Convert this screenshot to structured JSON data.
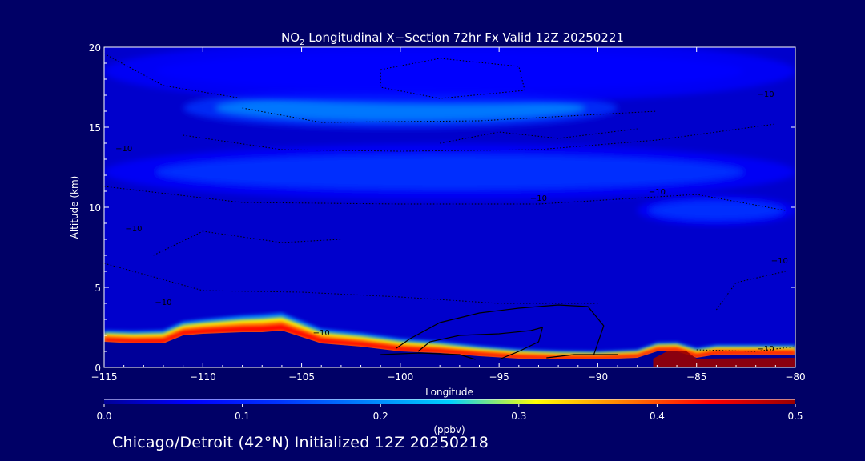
{
  "colors": {
    "background": "#000066",
    "text": "#ffffff",
    "contour_solid": "#000000",
    "contour_dotted": "#000000",
    "colormap": [
      "#000099",
      "#0000ff",
      "#0033ff",
      "#0080ff",
      "#00d0ff",
      "#ffff00",
      "#ff8000",
      "#ff0000",
      "#990000"
    ]
  },
  "chart_data": {
    "type": "heatmap",
    "title_prefix": "NO",
    "title_subscript": "2",
    "title_rest": " Longitudinal X−Section 72hr  Fx Valid 12Z 20250221",
    "xlabel": "Longitude",
    "ylabel": "Altitude (km)",
    "xlim": [
      -115,
      -80
    ],
    "ylim": [
      0,
      20
    ],
    "x_ticks": [
      -115,
      -110,
      -105,
      -100,
      -95,
      -90,
      -85,
      -80
    ],
    "x_tick_labels": [
      "−115",
      "−110",
      "−105",
      "−100",
      "−95",
      "−90",
      "−85",
      "−80"
    ],
    "y_ticks": [
      0,
      5,
      10,
      15,
      20
    ],
    "y_tick_labels": [
      "0",
      "5",
      "10",
      "15",
      "20"
    ],
    "colorbar": {
      "label": "(ppbv)",
      "range": [
        0.0,
        0.5
      ],
      "ticks": [
        0.0,
        0.1,
        0.2,
        0.3,
        0.4,
        0.5
      ],
      "tick_labels": [
        "0.0",
        "0.1",
        "0.2",
        "0.3",
        "0.4",
        "0.5"
      ]
    },
    "terrain_profile": [
      [
        -115,
        1.6
      ],
      [
        -113.5,
        1.5
      ],
      [
        -112,
        1.5
      ],
      [
        -111,
        2.0
      ],
      [
        -110,
        2.1
      ],
      [
        -108,
        2.2
      ],
      [
        -107,
        2.2
      ],
      [
        -106,
        2.3
      ],
      [
        -105,
        1.9
      ],
      [
        -104,
        1.5
      ],
      [
        -102,
        1.3
      ],
      [
        -100,
        1.0
      ],
      [
        -98,
        0.9
      ],
      [
        -96,
        0.7
      ],
      [
        -94,
        0.55
      ],
      [
        -92,
        0.5
      ],
      [
        -90,
        0.5
      ],
      [
        -88,
        0.6
      ],
      [
        -87,
        1.0
      ],
      [
        -86,
        1.0
      ],
      [
        -85,
        0.6
      ],
      [
        -84,
        0.8
      ],
      [
        -82,
        0.8
      ],
      [
        -80,
        0.8
      ]
    ],
    "polluted_layer": [
      [
        -115,
        0.7
      ],
      [
        -110,
        0.9
      ],
      [
        -107,
        1.1
      ],
      [
        -106,
        1.1
      ],
      [
        -104,
        0.9
      ],
      [
        -100,
        0.8
      ],
      [
        -95,
        0.6
      ],
      [
        -90,
        0.5
      ],
      [
        -88,
        0.5
      ],
      [
        -85,
        0.6
      ],
      [
        -80,
        0.6
      ]
    ],
    "bands": [
      {
        "center_km": 16.2,
        "lon_start": -111,
        "lon_end": -89,
        "peak_value": 0.2,
        "thickness_km": 1.6
      },
      {
        "center_km": 12.2,
        "lon_start": -115,
        "lon_end": -80,
        "peak_value": 0.14,
        "thickness_km": 2.2
      },
      {
        "center_km": 9.8,
        "lon_start": -88,
        "lon_end": -80,
        "peak_value": 0.15,
        "thickness_km": 1.2
      },
      {
        "center_km": 18.5,
        "lon_start": -115,
        "lon_end": -80,
        "peak_value": 0.07,
        "thickness_km": 2.5
      }
    ],
    "contour_labels": [
      {
        "text": "−10",
        "lon": -114,
        "alt": 13.5
      },
      {
        "text": "−10",
        "lon": -93,
        "alt": 10.4
      },
      {
        "text": "−10",
        "lon": -87,
        "alt": 10.8
      },
      {
        "text": "−10",
        "lon": -81.5,
        "alt": 16.9
      },
      {
        "text": "−10",
        "lon": -112,
        "alt": 3.9
      },
      {
        "text": "−10",
        "lon": -104,
        "alt": 2.0
      },
      {
        "text": "−10",
        "lon": -81.5,
        "alt": 1.0
      },
      {
        "text": "−10",
        "lon": -113.5,
        "alt": 8.5
      },
      {
        "text": "−10",
        "lon": -80.8,
        "alt": 6.5
      }
    ],
    "solid_contours": [
      [
        [
          -100.2,
          1.2
        ],
        [
          -99.5,
          1.8
        ],
        [
          -98,
          2.8
        ],
        [
          -96,
          3.4
        ],
        [
          -94,
          3.7
        ],
        [
          -92,
          3.9
        ],
        [
          -90.5,
          3.8
        ],
        [
          -89.7,
          2.6
        ],
        [
          -90.2,
          0.8
        ]
      ],
      [
        [
          -99.1,
          1.0
        ],
        [
          -98.5,
          1.6
        ],
        [
          -97,
          2.0
        ],
        [
          -95,
          2.1
        ],
        [
          -93.4,
          2.3
        ],
        [
          -92.8,
          2.5
        ],
        [
          -93,
          1.6
        ],
        [
          -94,
          1.0
        ],
        [
          -95,
          0.5
        ]
      ],
      [
        [
          -101,
          0.8
        ],
        [
          -99,
          0.9
        ],
        [
          -97,
          0.8
        ],
        [
          -96.2,
          0.5
        ]
      ],
      [
        [
          -92.6,
          0.6
        ],
        [
          -91.2,
          0.8
        ],
        [
          -89,
          0.8
        ]
      ]
    ],
    "dotted_contours": [
      [
        [
          -101,
          18.6
        ],
        [
          -98,
          19.3
        ],
        [
          -94,
          18.8
        ],
        [
          -93.7,
          17.3
        ],
        [
          -98,
          16.8
        ],
        [
          -101,
          17.5
        ],
        [
          -101,
          18.6
        ]
      ],
      [
        [
          -108,
          16.2
        ],
        [
          -104,
          15.3
        ],
        [
          -96,
          15.4
        ],
        [
          -90,
          15.8
        ],
        [
          -87,
          16.0
        ]
      ],
      [
        [
          -115,
          19.6
        ],
        [
          -112,
          17.6
        ],
        [
          -108,
          16.8
        ]
      ],
      [
        [
          -111,
          14.5
        ],
        [
          -106,
          13.6
        ],
        [
          -100,
          13.5
        ],
        [
          -93,
          13.6
        ],
        [
          -87,
          14.2
        ],
        [
          -81,
          15.2
        ]
      ],
      [
        [
          -115,
          11.3
        ],
        [
          -108,
          10.3
        ],
        [
          -100,
          10.2
        ],
        [
          -93,
          10.2
        ],
        [
          -85,
          10.8
        ],
        [
          -80.5,
          9.8
        ]
      ],
      [
        [
          -115,
          6.5
        ],
        [
          -110,
          4.8
        ],
        [
          -105,
          4.7
        ],
        [
          -100,
          4.4
        ],
        [
          -95,
          4.0
        ],
        [
          -90,
          4.0
        ]
      ],
      [
        [
          -112.5,
          7.0
        ],
        [
          -110,
          8.5
        ],
        [
          -106,
          7.8
        ],
        [
          -103,
          8.0
        ]
      ],
      [
        [
          -84,
          3.6
        ],
        [
          -83,
          5.3
        ],
        [
          -80.5,
          6.0
        ]
      ],
      [
        [
          -85,
          1.1
        ],
        [
          -82,
          1.0
        ],
        [
          -80,
          1.3
        ]
      ],
      [
        [
          -98,
          14.0
        ],
        [
          -95,
          14.7
        ],
        [
          -92,
          14.3
        ],
        [
          -88,
          14.9
        ]
      ]
    ]
  },
  "footer": {
    "text": "Chicago/Detroit (42°N) Initialized 12Z 20250218"
  }
}
